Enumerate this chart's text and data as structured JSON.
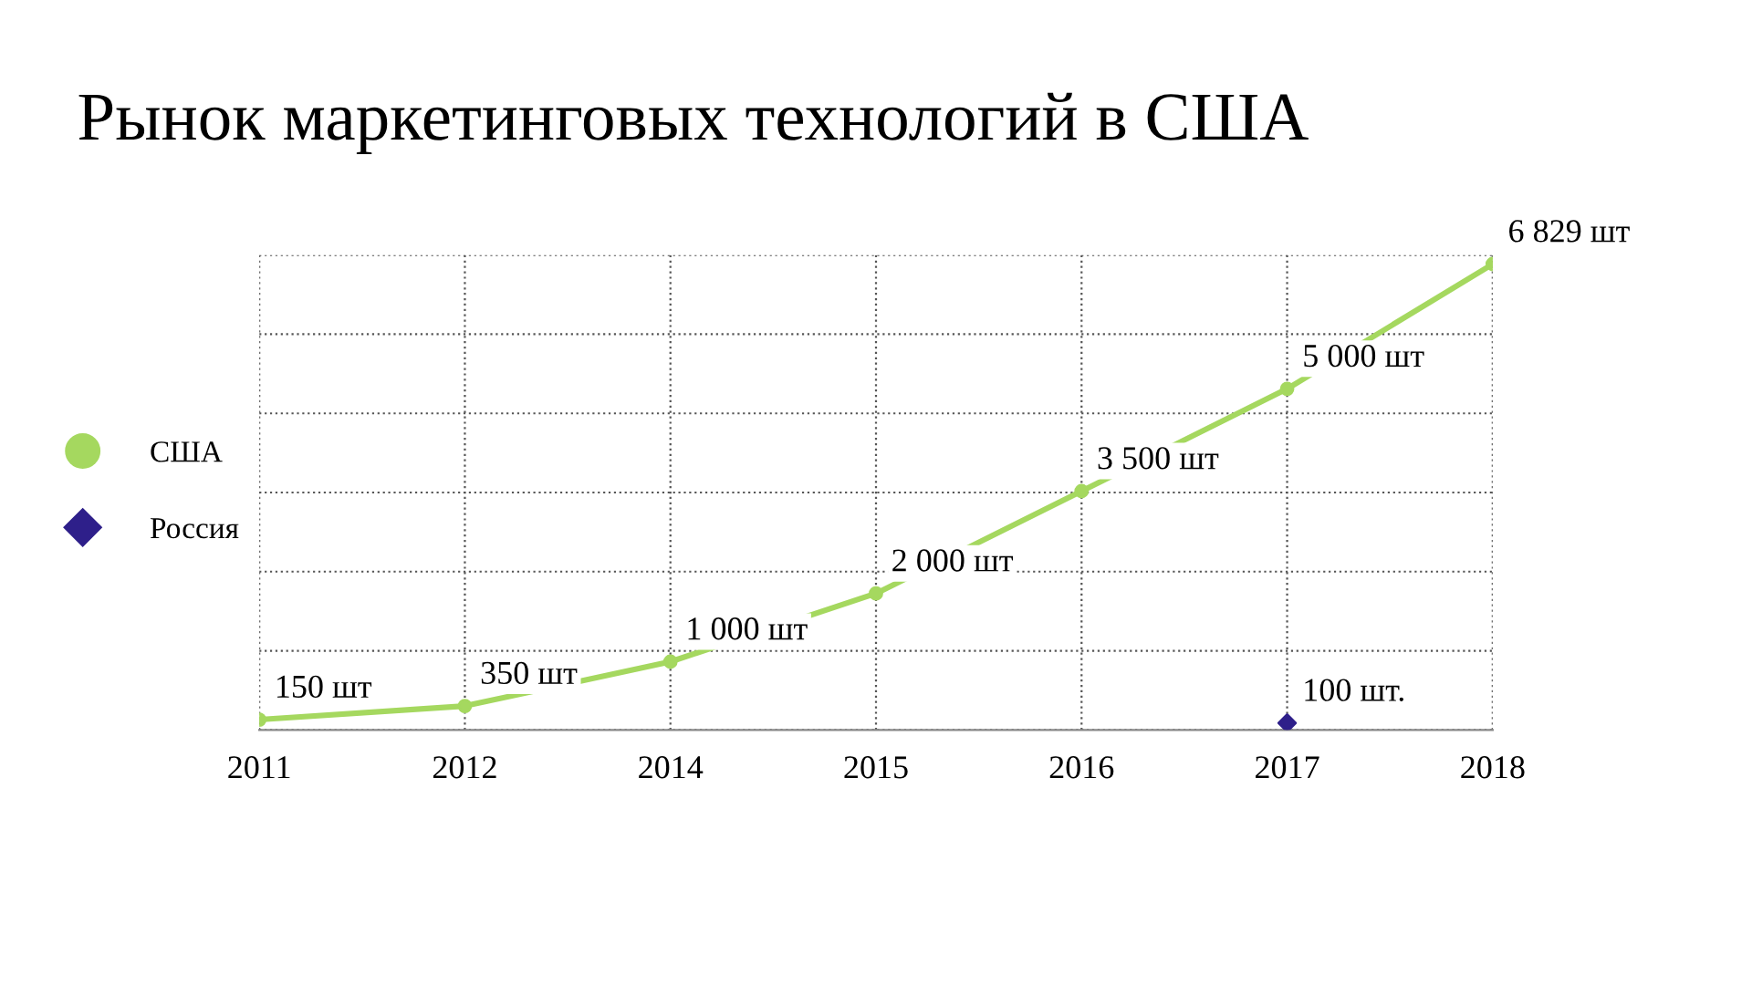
{
  "chart_data": {
    "type": "line",
    "title": "Рынок маркетинговых технологий в США",
    "categories": [
      "2011",
      "2012",
      "2014",
      "2015",
      "2016",
      "2017",
      "2018"
    ],
    "series": [
      {
        "name": "США",
        "color": "#a5d85f",
        "marker": "circle",
        "values": [
          150,
          350,
          1000,
          2000,
          3500,
          5000,
          6829
        ],
        "value_labels": [
          "150 шт",
          "350 шт",
          "1 000 шт",
          "2 000 шт",
          "3 500 шт",
          "5 000 шт",
          "6 829 шт"
        ]
      },
      {
        "name": "Россия",
        "type": "scatter",
        "color": "#2e1f8a",
        "marker": "diamond",
        "values": [
          null,
          null,
          null,
          null,
          null,
          100,
          null
        ],
        "value_labels": [
          null,
          null,
          null,
          null,
          null,
          "100 шт.",
          null
        ]
      }
    ],
    "ylim": [
      0,
      6960
    ],
    "yticks": [
      {
        "value": 0,
        "label": null
      },
      {
        "value": 1160,
        "label": null
      },
      {
        "value": 2320,
        "label": null
      },
      {
        "value": 3480,
        "label": null
      },
      {
        "value": 4640,
        "label": null
      },
      {
        "value": 5800,
        "label": null
      },
      {
        "value": 6960,
        "label": null
      }
    ],
    "tick_labels": "x",
    "grid": true,
    "legend": "left",
    "line_style": "solid"
  }
}
